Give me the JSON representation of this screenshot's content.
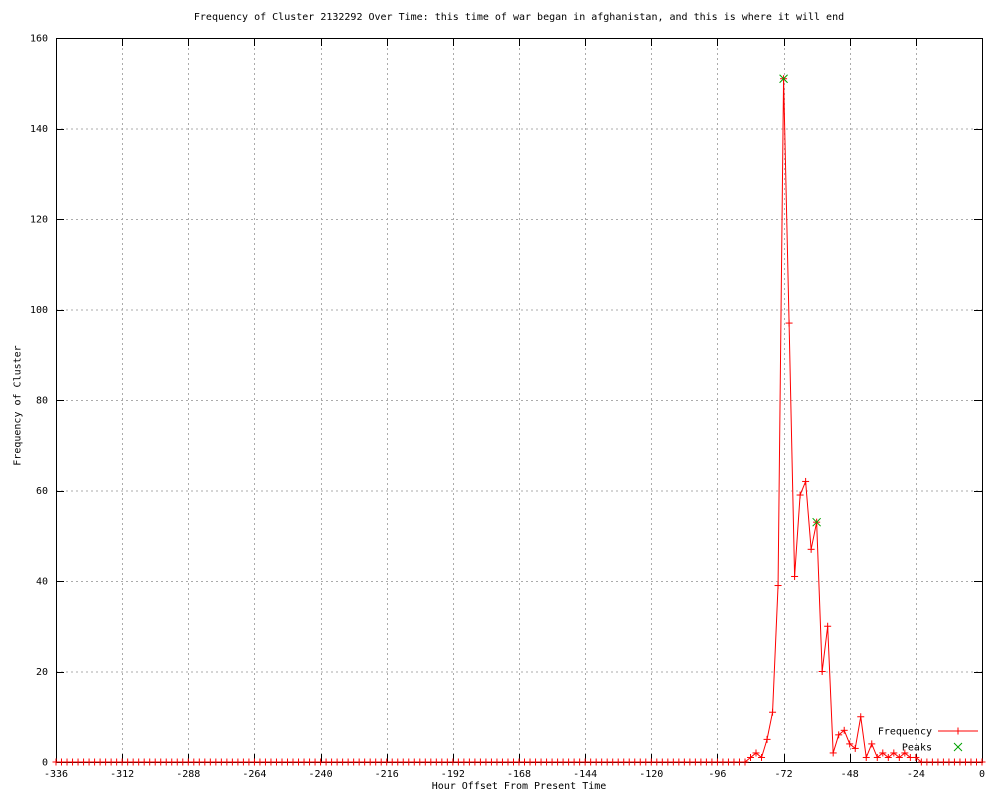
{
  "chart_data": {
    "type": "line",
    "title": "Frequency of Cluster 2132292 Over Time: this time of war began in afghanistan, and this is where it will end",
    "xlabel": "Hour Offset From Present Time",
    "ylabel": "Frequency of Cluster",
    "xlim": [
      -336,
      0
    ],
    "ylim": [
      0,
      160
    ],
    "x_ticks": [
      -336,
      -312,
      -288,
      -264,
      -240,
      -216,
      -192,
      -168,
      -144,
      -120,
      -96,
      -72,
      -48,
      -24,
      0
    ],
    "y_ticks": [
      0,
      20,
      40,
      60,
      80,
      100,
      120,
      140,
      160
    ],
    "grid": "dotted",
    "grid_color": "#ababab",
    "background": "#ffffff",
    "legend_position": "bottom-right",
    "series": [
      {
        "name": "Frequency",
        "color": "#ff0000",
        "marker": "plus",
        "style": "linespoints",
        "x_start": -336,
        "x_end": 0,
        "x_step": 2,
        "default_value": 0,
        "nonzero_values": {
          "-84": 1,
          "-82": 2,
          "-80": 1,
          "-78": 5,
          "-76": 11,
          "-74": 39,
          "-72": 151,
          "-70": 97,
          "-68": 41,
          "-66": 59,
          "-64": 62,
          "-62": 47,
          "-60": 53,
          "-58": 20,
          "-56": 30,
          "-54": 2,
          "-52": 6,
          "-50": 7,
          "-48": 4,
          "-46": 3,
          "-44": 10,
          "-42": 1,
          "-40": 4,
          "-38": 1,
          "-36": 2,
          "-34": 1,
          "-32": 2,
          "-30": 1,
          "-28": 2,
          "-26": 1,
          "-24": 1
        }
      },
      {
        "name": "Peaks",
        "color": "#00a000",
        "marker": "cross",
        "style": "points",
        "points": [
          [
            -72,
            151
          ],
          [
            -60,
            53
          ]
        ]
      }
    ]
  }
}
